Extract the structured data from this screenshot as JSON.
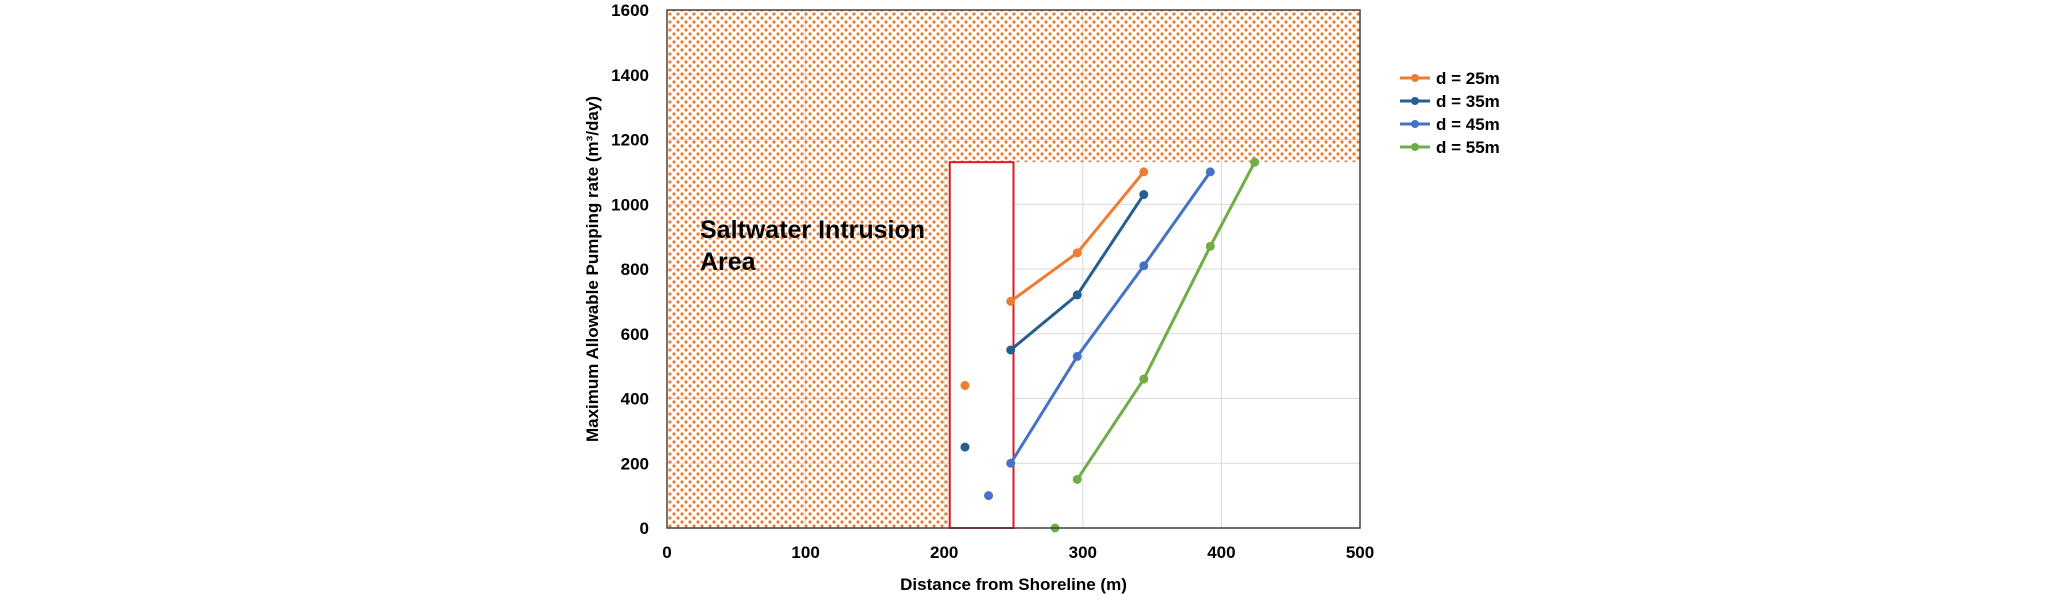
{
  "chart_data": {
    "type": "line",
    "xlabel": "Distance from Shoreline (m)",
    "ylabel": "Maximum Allowable Pumping rate (m³/day)",
    "xlim": [
      0,
      500
    ],
    "ylim": [
      0,
      1600
    ],
    "x_ticks": [
      "0",
      "100",
      "200",
      "300",
      "400",
      "500"
    ],
    "y_ticks": [
      "0",
      "200",
      "400",
      "600",
      "800",
      "1000",
      "1200",
      "1400",
      "1600"
    ],
    "grid": true,
    "legend_position": "right",
    "annotation": {
      "lines": [
        "Saltwater Intrusion",
        "Area"
      ]
    },
    "intrusion_area": {
      "color": "#ED7D31",
      "threshold_y": 1130,
      "threshold_x": 250
    },
    "highlight_box": {
      "x_range": [
        204,
        250
      ],
      "y_range": [
        0,
        1130
      ],
      "color": "#E0191F"
    },
    "series": [
      {
        "name": "d = 25m",
        "color": "#ED7D31",
        "isolated": [
          {
            "x": 215,
            "y": 440
          }
        ],
        "line": [
          {
            "x": 248,
            "y": 700
          },
          {
            "x": 296,
            "y": 850
          },
          {
            "x": 344,
            "y": 1100
          }
        ]
      },
      {
        "name": "d = 35m",
        "color": "#255E91",
        "isolated": [
          {
            "x": 215,
            "y": 250
          }
        ],
        "line": [
          {
            "x": 248,
            "y": 550
          },
          {
            "x": 296,
            "y": 720
          },
          {
            "x": 344,
            "y": 1030
          }
        ]
      },
      {
        "name": "d = 45m",
        "color": "#4472C4",
        "isolated": [
          {
            "x": 232,
            "y": 100
          }
        ],
        "line": [
          {
            "x": 248,
            "y": 200
          },
          {
            "x": 296,
            "y": 530
          },
          {
            "x": 344,
            "y": 810
          },
          {
            "x": 392,
            "y": 1100
          }
        ]
      },
      {
        "name": "d = 55m",
        "color": "#70AD47",
        "isolated": [
          {
            "x": 280,
            "y": 0
          }
        ],
        "line": [
          {
            "x": 296,
            "y": 150
          },
          {
            "x": 344,
            "y": 460
          },
          {
            "x": 392,
            "y": 870
          },
          {
            "x": 424,
            "y": 1130
          }
        ]
      }
    ]
  }
}
